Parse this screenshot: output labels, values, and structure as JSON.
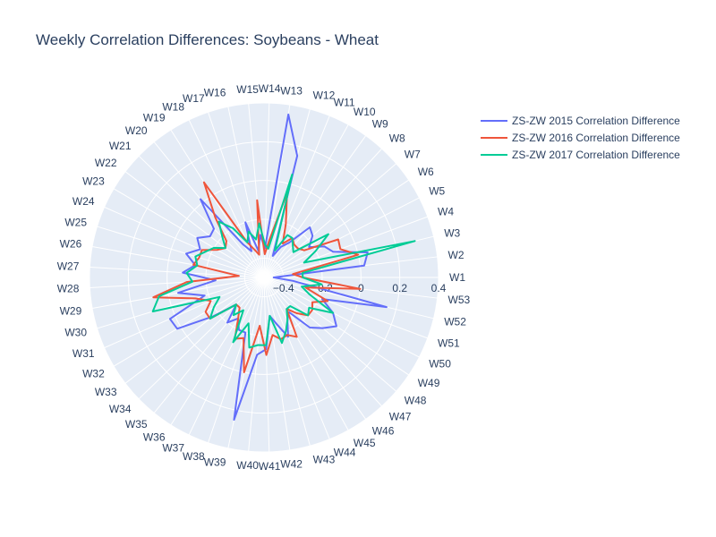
{
  "chart_data": {
    "type": "radar",
    "title": "Weekly Correlation Differences: Soybeans - Wheat",
    "categories": [
      "W1",
      "W2",
      "W3",
      "W4",
      "W5",
      "W6",
      "W7",
      "W8",
      "W9",
      "W10",
      "W11",
      "W12",
      "W13",
      "W14",
      "W15",
      "W16",
      "W17",
      "W18",
      "W19",
      "W20",
      "W21",
      "W22",
      "W23",
      "W24",
      "W25",
      "W26",
      "W27",
      "W28",
      "W29",
      "W30",
      "W31",
      "W32",
      "W33",
      "W34",
      "W35",
      "W36",
      "W37",
      "W38",
      "W39",
      "W40",
      "W41",
      "W42",
      "W43",
      "W44",
      "W45",
      "W46",
      "W47",
      "W48",
      "W49",
      "W50",
      "W51",
      "W52",
      "W53"
    ],
    "radial_ticks": [
      "−0.4",
      "−0.2",
      "0",
      "0.2",
      "0.4"
    ],
    "radial_range": [
      -0.5,
      0.4
    ],
    "legend_position": "top-right",
    "series": [
      {
        "name": "ZS-ZW 2015 Correlation Difference",
        "color": "#636efa",
        "values": [
          -0.45,
          0.02,
          0.05,
          -0.12,
          -0.15,
          -0.22,
          -0.17,
          -0.15,
          -0.28,
          -0.32,
          -0.38,
          0.15,
          0.35,
          -0.35,
          -0.28,
          -0.36,
          -0.2,
          -0.35,
          -0.3,
          0.02,
          -0.14,
          -0.15,
          -0.1,
          -0.14,
          -0.08,
          -0.14,
          -0.08,
          -0.25,
          -0.05,
          -0.18,
          0.03,
          0.02,
          -0.17,
          -0.3,
          -0.2,
          -0.25,
          -0.2,
          -0.2,
          0.25,
          -0.1,
          -0.13,
          -0.3,
          -0.25,
          -0.17,
          -0.25,
          -0.28,
          -0.15,
          -0.1,
          -0.05,
          -0.1,
          -0.18,
          0.15,
          -0.35
        ]
      },
      {
        "name": "ZS-ZW 2016 Correlation Difference",
        "color": "#ef553b",
        "values": [
          -0.3,
          -0.35,
          0.0,
          -0.08,
          -0.07,
          -0.25,
          -0.27,
          -0.27,
          -0.25,
          -0.3,
          -0.2,
          -0.05,
          -0.3,
          -0.38,
          -0.1,
          -0.38,
          -0.35,
          -0.3,
          0.08,
          -0.1,
          -0.23,
          -0.25,
          -0.22,
          -0.15,
          -0.15,
          -0.13,
          -0.37,
          -0.1,
          0.08,
          -0.13,
          -0.2,
          -0.15,
          -0.15,
          -0.3,
          -0.3,
          -0.25,
          -0.15,
          -0.17,
          0.0,
          -0.25,
          -0.1,
          -0.2,
          -0.17,
          -0.18,
          -0.15,
          -0.3,
          -0.25,
          -0.2,
          -0.2,
          -0.22,
          -0.15,
          -0.28,
          0.0
        ]
      },
      {
        "name": "ZS-ZW 2017 Correlation Difference",
        "color": "#00cc96",
        "values": [
          -0.3,
          -0.3,
          0.3,
          -0.28,
          -0.2,
          -0.1,
          -0.3,
          -0.28,
          -0.25,
          -0.25,
          -0.35,
          0.05,
          -0.35,
          -0.33,
          -0.22,
          -0.3,
          -0.25,
          -0.3,
          -0.2,
          -0.13,
          -0.2,
          -0.25,
          -0.2,
          -0.17,
          -0.13,
          -0.15,
          -0.1,
          -0.13,
          0.05,
          0.1,
          -0.25,
          -0.2,
          -0.15,
          -0.3,
          -0.25,
          -0.3,
          -0.13,
          -0.25,
          -0.13,
          -0.15,
          -0.15,
          -0.3,
          -0.15,
          -0.2,
          -0.25,
          -0.3,
          -0.3,
          -0.2,
          -0.22,
          -0.1,
          -0.25,
          -0.3,
          -0.2
        ]
      }
    ]
  }
}
